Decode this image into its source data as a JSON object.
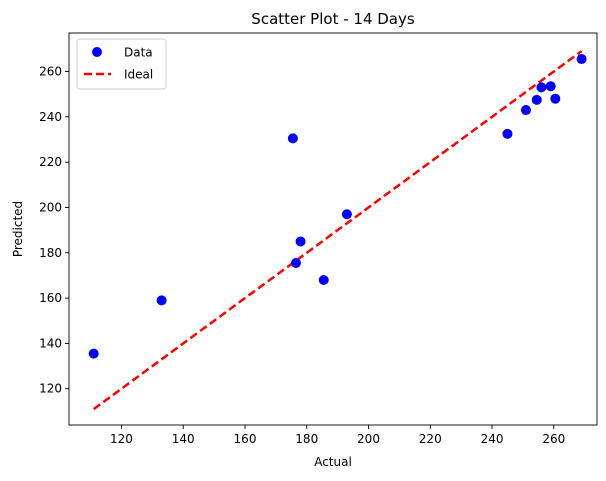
{
  "chart_data": {
    "type": "scatter",
    "title": "Scatter Plot - 14 Days",
    "xlabel": "Actual",
    "ylabel": "Predicted",
    "xlim": [
      103,
      274
    ],
    "ylim": [
      104,
      277
    ],
    "xticks": [
      120,
      140,
      160,
      180,
      200,
      220,
      240,
      260
    ],
    "yticks": [
      120,
      140,
      160,
      180,
      200,
      220,
      240,
      260
    ],
    "grid": false,
    "legend_position": "top-left",
    "series": [
      {
        "name": "Data",
        "kind": "scatter",
        "color": "#0000ff",
        "points": [
          {
            "x": 111,
            "y": 135.5
          },
          {
            "x": 133,
            "y": 159
          },
          {
            "x": 175.5,
            "y": 230.5
          },
          {
            "x": 176.5,
            "y": 175.5
          },
          {
            "x": 178,
            "y": 185
          },
          {
            "x": 185.5,
            "y": 168
          },
          {
            "x": 193,
            "y": 197
          },
          {
            "x": 245,
            "y": 232.5
          },
          {
            "x": 251,
            "y": 243
          },
          {
            "x": 254.5,
            "y": 247.5
          },
          {
            "x": 256,
            "y": 253
          },
          {
            "x": 259,
            "y": 253.5
          },
          {
            "x": 260.5,
            "y": 248
          },
          {
            "x": 269,
            "y": 265.5
          }
        ]
      },
      {
        "name": "Ideal",
        "kind": "line",
        "color": "#ff0000",
        "dash": "dashed",
        "points": [
          {
            "x": 111,
            "y": 111
          },
          {
            "x": 269,
            "y": 269
          }
        ]
      }
    ]
  }
}
